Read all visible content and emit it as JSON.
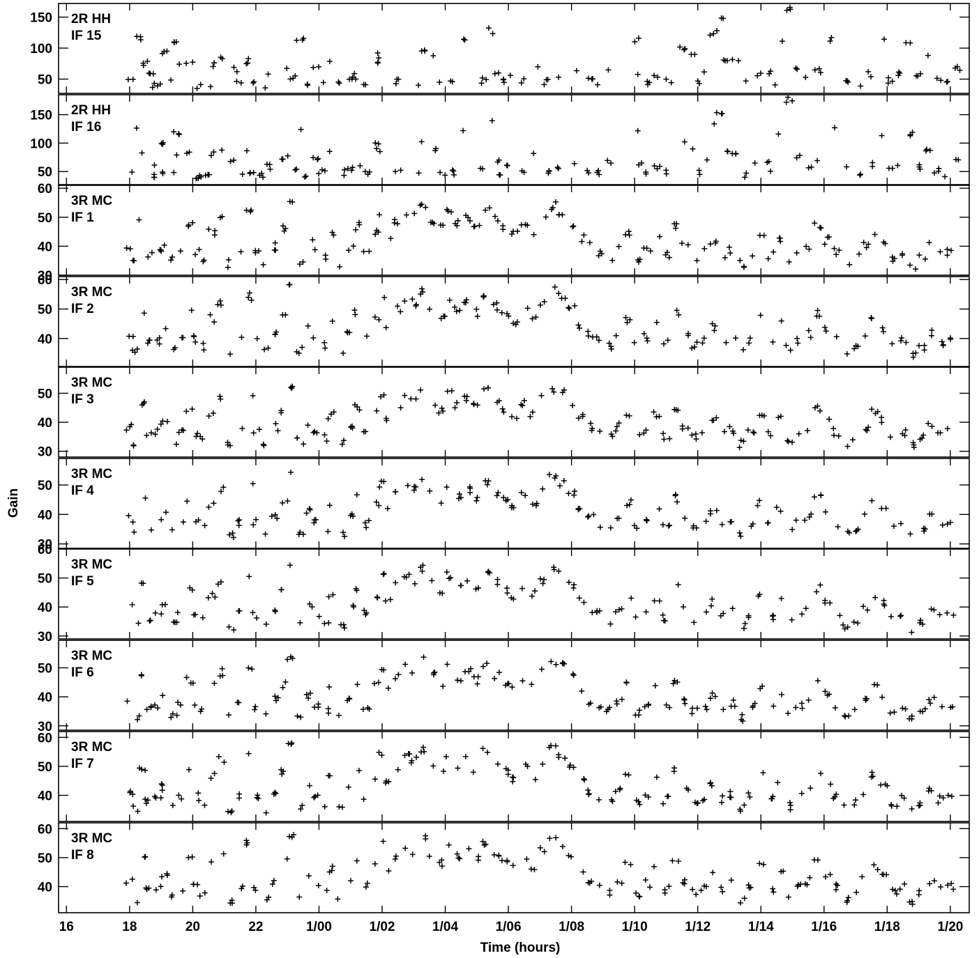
{
  "chart_data": {
    "type": "scatter",
    "xlabel": "Time (hours)",
    "ylabel": "Gain",
    "x_ticks": [
      "16",
      "18",
      "20",
      "22",
      "1/00",
      "1/02",
      "1/04",
      "1/06",
      "1/08",
      "1/10",
      "1/12",
      "1/14",
      "1/16",
      "1/18",
      "1/20"
    ],
    "x_tick_hours": [
      16,
      18,
      20,
      22,
      24,
      26,
      28,
      30,
      32,
      34,
      36,
      38,
      40,
      42,
      44
    ],
    "xlim": [
      15.75,
      44.6
    ],
    "marker": "plus",
    "panels": [
      {
        "label_line1": "2R HH",
        "label_line2": "IF 15",
        "ylim": [
          27,
          172
        ],
        "y_ticks": [
          50,
          100,
          150
        ],
        "shape": "hh",
        "amp": 1.0
      },
      {
        "label_line1": "2R HH",
        "label_line2": "IF 16",
        "ylim": [
          27,
          185
        ],
        "y_ticks": [
          50,
          100,
          150
        ],
        "shape": "hh",
        "amp": 1.07
      },
      {
        "label_line1": "3R MC",
        "label_line2": "IF 1",
        "ylim": [
          30,
          61
        ],
        "y_ticks": [
          30,
          40,
          50,
          60
        ],
        "shape": "mc",
        "amp": 1.0
      },
      {
        "label_line1": "3R MC",
        "label_line2": "IF 2",
        "ylim": [
          30.5,
          61
        ],
        "y_ticks": [
          40,
          50,
          60
        ],
        "shape": "mc",
        "amp": 1.04
      },
      {
        "label_line1": "3R MC",
        "label_line2": "IF 3",
        "ylim": [
          28,
          59
        ],
        "y_ticks": [
          30,
          40,
          50
        ],
        "shape": "mc",
        "amp": 0.96
      },
      {
        "label_line1": "3R MC",
        "label_line2": "IF 4",
        "ylim": [
          28.5,
          59
        ],
        "y_ticks": [
          30,
          40,
          50
        ],
        "shape": "mc",
        "amp": 0.97
      },
      {
        "label_line1": "3R MC",
        "label_line2": "IF 5",
        "ylim": [
          29,
          60
        ],
        "y_ticks": [
          30,
          40,
          50,
          60
        ],
        "shape": "mc",
        "amp": 0.985
      },
      {
        "label_line1": "3R MC",
        "label_line2": "IF 6",
        "ylim": [
          28.5,
          59.5
        ],
        "y_ticks": [
          30,
          40,
          50
        ],
        "shape": "mc",
        "amp": 0.97
      },
      {
        "label_line1": "3R MC",
        "label_line2": "IF 7",
        "ylim": [
          31,
          62
        ],
        "y_ticks": [
          40,
          50,
          60
        ],
        "shape": "mc",
        "amp": 1.04
      },
      {
        "label_line1": "3R MC",
        "label_line2": "IF 8",
        "ylim": [
          31,
          62
        ],
        "y_ticks": [
          40,
          50,
          60
        ],
        "shape": "mc",
        "amp": 1.05
      }
    ],
    "hh_series": [
      [
        18.0,
        48
      ],
      [
        18.3,
        115
      ],
      [
        18.5,
        75
      ],
      [
        18.7,
        60
      ],
      [
        18.8,
        40
      ],
      [
        19.0,
        42
      ],
      [
        19.1,
        92
      ],
      [
        19.3,
        45
      ],
      [
        19.5,
        108
      ],
      [
        19.6,
        75
      ],
      [
        19.9,
        78
      ],
      [
        20.1,
        40
      ],
      [
        20.3,
        42
      ],
      [
        20.5,
        38
      ],
      [
        20.6,
        75
      ],
      [
        20.9,
        85
      ],
      [
        21.3,
        65
      ],
      [
        21.5,
        45
      ],
      [
        21.7,
        78
      ],
      [
        21.9,
        42
      ],
      [
        22.2,
        40
      ],
      [
        22.4,
        55
      ],
      [
        22.9,
        70
      ],
      [
        23.2,
        52
      ],
      [
        23.4,
        115
      ],
      [
        23.6,
        40
      ],
      [
        23.9,
        68
      ],
      [
        24.1,
        45
      ],
      [
        24.3,
        80
      ],
      [
        24.7,
        45
      ],
      [
        25.0,
        50
      ],
      [
        25.2,
        55
      ],
      [
        25.5,
        45
      ],
      [
        25.8,
        90
      ],
      [
        25.9,
        80
      ],
      [
        26.5,
        45
      ],
      [
        27.1,
        42
      ],
      [
        27.3,
        95
      ],
      [
        27.7,
        85
      ],
      [
        27.9,
        45
      ],
      [
        28.2,
        45
      ],
      [
        28.6,
        115
      ],
      [
        29.2,
        48
      ],
      [
        29.4,
        128
      ],
      [
        29.6,
        62
      ],
      [
        29.8,
        45
      ],
      [
        30.0,
        55
      ],
      [
        30.4,
        48
      ],
      [
        30.9,
        72
      ],
      [
        31.2,
        45
      ],
      [
        31.5,
        50
      ],
      [
        32.2,
        60
      ],
      [
        32.6,
        48
      ],
      [
        32.9,
        45
      ],
      [
        33.2,
        65
      ],
      [
        34.1,
        112
      ],
      [
        34.2,
        60
      ],
      [
        34.4,
        45
      ],
      [
        34.7,
        55
      ],
      [
        35.1,
        45
      ],
      [
        35.5,
        100
      ],
      [
        35.8,
        88
      ],
      [
        36.0,
        45
      ],
      [
        36.3,
        65
      ],
      [
        36.5,
        125
      ],
      [
        36.7,
        145
      ],
      [
        36.9,
        78
      ],
      [
        37.2,
        80
      ],
      [
        37.6,
        42
      ],
      [
        37.9,
        60
      ],
      [
        38.2,
        60
      ],
      [
        38.4,
        45
      ],
      [
        38.6,
        112
      ],
      [
        38.9,
        165
      ],
      [
        39.2,
        70
      ],
      [
        39.5,
        55
      ],
      [
        39.8,
        65
      ],
      [
        40.3,
        115
      ],
      [
        40.7,
        50
      ],
      [
        41.2,
        40
      ],
      [
        41.5,
        58
      ],
      [
        41.9,
        110
      ],
      [
        42.1,
        48
      ],
      [
        42.4,
        60
      ],
      [
        42.7,
        108
      ],
      [
        43.0,
        55
      ],
      [
        43.3,
        85
      ],
      [
        43.6,
        48
      ],
      [
        43.9,
        42
      ],
      [
        44.2,
        68
      ]
    ],
    "mc_series": [
      [
        18.0,
        40
      ],
      [
        18.2,
        34
      ],
      [
        18.4,
        48
      ],
      [
        18.6,
        37
      ],
      [
        18.9,
        38
      ],
      [
        19.1,
        41
      ],
      [
        19.4,
        35
      ],
      [
        19.6,
        38
      ],
      [
        19.9,
        47
      ],
      [
        20.1,
        38
      ],
      [
        20.3,
        36
      ],
      [
        20.6,
        45
      ],
      [
        20.9,
        50
      ],
      [
        21.2,
        34
      ],
      [
        21.5,
        38
      ],
      [
        21.8,
        52
      ],
      [
        22.0,
        38
      ],
      [
        22.3,
        34
      ],
      [
        22.6,
        40
      ],
      [
        22.9,
        46
      ],
      [
        23.1,
        55
      ],
      [
        23.4,
        35
      ],
      [
        23.7,
        42
      ],
      [
        23.9,
        38
      ],
      [
        24.2,
        36
      ],
      [
        24.4,
        44
      ],
      [
        24.7,
        34
      ],
      [
        25.0,
        40
      ],
      [
        25.2,
        47
      ],
      [
        25.5,
        38
      ],
      [
        25.8,
        45
      ],
      [
        26.0,
        52
      ],
      [
        26.2,
        43
      ],
      [
        26.5,
        48
      ],
      [
        26.8,
        52
      ],
      [
        27.0,
        50
      ],
      [
        27.3,
        54
      ],
      [
        27.6,
        49
      ],
      [
        27.9,
        46
      ],
      [
        28.1,
        52
      ],
      [
        28.4,
        48
      ],
      [
        28.7,
        50
      ],
      [
        29.0,
        47
      ],
      [
        29.3,
        53
      ],
      [
        29.6,
        49
      ],
      [
        29.9,
        46
      ],
      [
        30.2,
        44
      ],
      [
        30.5,
        48
      ],
      [
        30.8,
        45
      ],
      [
        31.1,
        50
      ],
      [
        31.4,
        54
      ],
      [
        31.7,
        52
      ],
      [
        32.0,
        48
      ],
      [
        32.3,
        43
      ],
      [
        32.6,
        40
      ],
      [
        32.9,
        38
      ],
      [
        33.2,
        36
      ],
      [
        33.5,
        40
      ],
      [
        33.8,
        45
      ],
      [
        34.1,
        36
      ],
      [
        34.4,
        39
      ],
      [
        34.7,
        44
      ],
      [
        35.0,
        37
      ],
      [
        35.3,
        47
      ],
      [
        35.6,
        40
      ],
      [
        35.9,
        36
      ],
      [
        36.2,
        38
      ],
      [
        36.5,
        42
      ],
      [
        36.8,
        37
      ],
      [
        37.1,
        39
      ],
      [
        37.4,
        34
      ],
      [
        37.7,
        38
      ],
      [
        38.0,
        45
      ],
      [
        38.3,
        37
      ],
      [
        38.6,
        43
      ],
      [
        38.9,
        35
      ],
      [
        39.2,
        38
      ],
      [
        39.5,
        40
      ],
      [
        39.8,
        47
      ],
      [
        40.1,
        42
      ],
      [
        40.4,
        38
      ],
      [
        40.7,
        34
      ],
      [
        41.0,
        36
      ],
      [
        41.3,
        40
      ],
      [
        41.6,
        45
      ],
      [
        41.9,
        42
      ],
      [
        42.2,
        36
      ],
      [
        42.5,
        38
      ],
      [
        42.8,
        33
      ],
      [
        43.1,
        36
      ],
      [
        43.4,
        40
      ],
      [
        43.7,
        37
      ],
      [
        44.0,
        38
      ]
    ]
  }
}
